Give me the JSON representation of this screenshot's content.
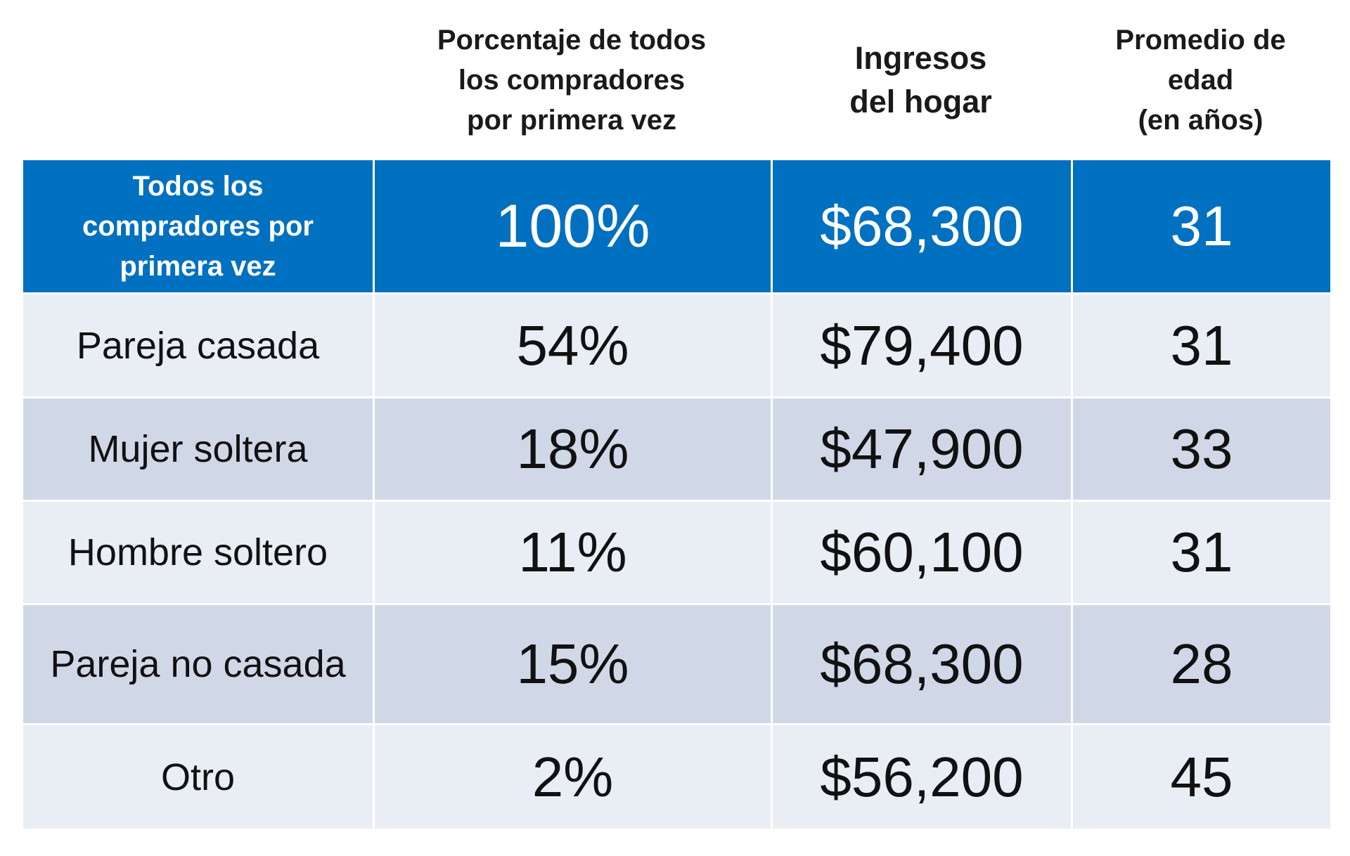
{
  "header": {
    "group": "",
    "percent": "Porcentaje de todos\nlos compradores\npor primera vez",
    "income": "Ingresos\ndel hogar",
    "age": "Promedio de\nedad\n(en años)"
  },
  "rows": [
    {
      "group": "Todos los\ncompradores por\nprimera vez",
      "percent": "100%",
      "income": "$68,300",
      "age": "31"
    },
    {
      "group": "Pareja casada",
      "percent": "54%",
      "income": "$79,400",
      "age": "31"
    },
    {
      "group": "Mujer soltera",
      "percent": "18%",
      "income": "$47,900",
      "age": "33"
    },
    {
      "group": "Hombre soltero",
      "percent": "11%",
      "income": "$60,100",
      "age": "31"
    },
    {
      "group": "Pareja no casada",
      "percent": "15%",
      "income": "$68,300",
      "age": "28"
    },
    {
      "group": "Otro",
      "percent": "2%",
      "income": "$56,200",
      "age": "45"
    }
  ],
  "colors": {
    "header_band": "#0070c0",
    "row_light": "#e9edf4",
    "row_dark": "#d0d8e8"
  }
}
